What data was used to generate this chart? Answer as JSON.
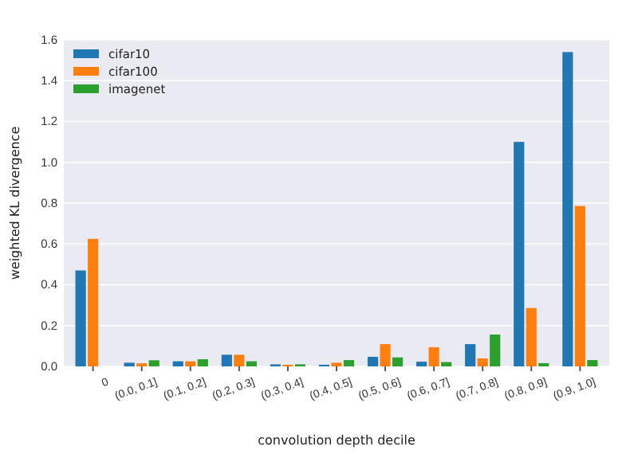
{
  "chart_data": {
    "type": "bar",
    "xlabel": "convolution depth decile",
    "ylabel": "weighted KL divergence",
    "categories": [
      "0",
      "(0.0, 0.1]",
      "(0.1, 0.2]",
      "(0.2, 0.3]",
      "(0.3, 0.4]",
      "(0.4, 0.5]",
      "(0.5, 0.6]",
      "(0.6, 0.7]",
      "(0.7, 0.8]",
      "(0.8, 0.9]",
      "(0.9, 1.0]"
    ],
    "series": [
      {
        "name": "cifar10",
        "color": "#1f77b4",
        "values": [
          0.47,
          0.018,
          0.025,
          0.057,
          0.01,
          0.008,
          0.047,
          0.023,
          0.109,
          1.1,
          1.54
        ]
      },
      {
        "name": "cifar100",
        "color": "#ff7f0e",
        "values": [
          0.625,
          0.015,
          0.025,
          0.057,
          0.008,
          0.018,
          0.109,
          0.094,
          0.039,
          0.286,
          0.786
        ]
      },
      {
        "name": "imagenet",
        "color": "#2ca02c",
        "values": [
          0,
          0.03,
          0.035,
          0.025,
          0.01,
          0.031,
          0.044,
          0.021,
          0.156,
          0.016,
          0.031
        ]
      }
    ],
    "ylim": [
      0,
      1.6
    ],
    "yticks": [
      {
        "value": 0,
        "label": "0.0"
      },
      {
        "value": 0.2,
        "label": "0.2"
      },
      {
        "value": 0.4,
        "label": "0.4"
      },
      {
        "value": 0.6,
        "label": "0.6"
      },
      {
        "value": 0.8,
        "label": "0.8"
      },
      {
        "value": 1,
        "label": "1.0"
      },
      {
        "value": 1.2,
        "label": "1.2"
      },
      {
        "value": 1.4,
        "label": "1.4"
      },
      {
        "value": 1.6,
        "label": "1.6"
      }
    ],
    "grid": "y",
    "legend": "top left"
  }
}
